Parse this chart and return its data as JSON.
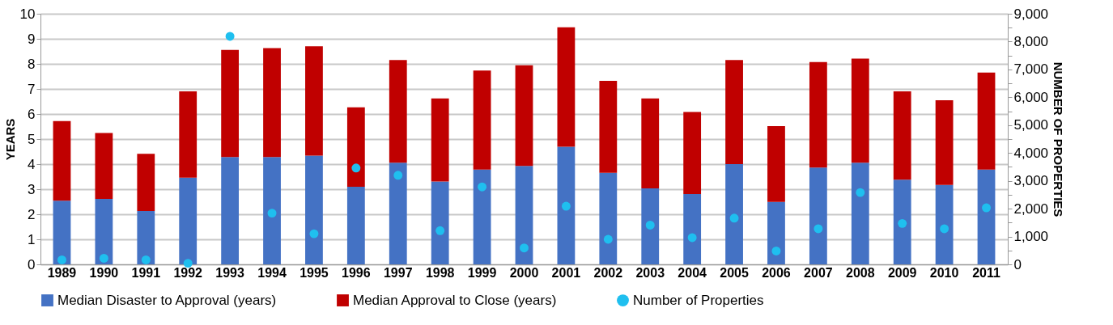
{
  "chart_data": {
    "type": "bar",
    "stacked": true,
    "ylabel": "YEARS",
    "y2label": "NUMBER OF PROPERTIES",
    "categories": [
      "1989",
      "1990",
      "1991",
      "1992",
      "1993",
      "1994",
      "1995",
      "1996",
      "1997",
      "1998",
      "1999",
      "2000",
      "2001",
      "2002",
      "2003",
      "2004",
      "2005",
      "2006",
      "2007",
      "2008",
      "2009",
      "2010",
      "2011"
    ],
    "series": [
      {
        "name": "Median Disaster to Approval (years)",
        "color": "#4472c4",
        "values": [
          2.54,
          2.61,
          2.13,
          3.46,
          4.28,
          4.28,
          4.34,
          3.1,
          4.06,
          3.31,
          3.78,
          3.93,
          4.69,
          3.65,
          3.03,
          2.81,
          4.0,
          2.49,
          3.86,
          4.06,
          3.38,
          3.17,
          3.78
        ]
      },
      {
        "name": "Median Approval to Close (years)",
        "color": "#c00000",
        "values": [
          3.18,
          2.63,
          2.28,
          3.44,
          4.28,
          4.35,
          4.36,
          3.17,
          4.09,
          3.31,
          3.95,
          4.01,
          4.77,
          3.67,
          3.59,
          3.27,
          4.15,
          3.03,
          4.21,
          4.15,
          3.52,
          3.38,
          3.87
        ]
      },
      {
        "name": "Number of Properties",
        "type": "scatter",
        "axis": "y2",
        "marker": "circle",
        "color": "#1fbfef",
        "values": [
          160,
          220,
          160,
          40,
          8190,
          1840,
          1100,
          3460,
          3200,
          1210,
          2780,
          590,
          2090,
          900,
          1410,
          960,
          1660,
          480,
          1280,
          2580,
          1470,
          1280,
          2030
        ]
      }
    ],
    "ylim": [
      0,
      10
    ],
    "yticks": [
      0,
      1,
      2,
      3,
      4,
      5,
      6,
      7,
      8,
      9,
      10
    ],
    "y2lim": [
      0,
      9000
    ],
    "y2ticks": [
      0,
      {
        "value": 500,
        "label": null
      },
      {
        "value": 1000,
        "label": "1,000"
      },
      {
        "value": 1500,
        "label": null
      },
      {
        "value": 2000,
        "label": "2,000"
      },
      {
        "value": 2500,
        "label": null
      },
      {
        "value": 3000,
        "label": "3,000"
      },
      {
        "value": 3500,
        "label": null
      },
      {
        "value": 4000,
        "label": "4,000"
      },
      {
        "value": 4500,
        "label": null
      },
      {
        "value": 5000,
        "label": "5,000"
      },
      {
        "value": 5500,
        "label": null
      },
      {
        "value": 6000,
        "label": "6,000"
      },
      {
        "value": 6500,
        "label": null
      },
      {
        "value": 7000,
        "label": "7,000"
      },
      {
        "value": 7500,
        "label": null
      },
      {
        "value": 8000,
        "label": "8,000"
      },
      {
        "value": 8500,
        "label": null
      },
      {
        "value": 9000,
        "label": "9,000"
      }
    ],
    "grid": "y",
    "legend": "bottom"
  }
}
